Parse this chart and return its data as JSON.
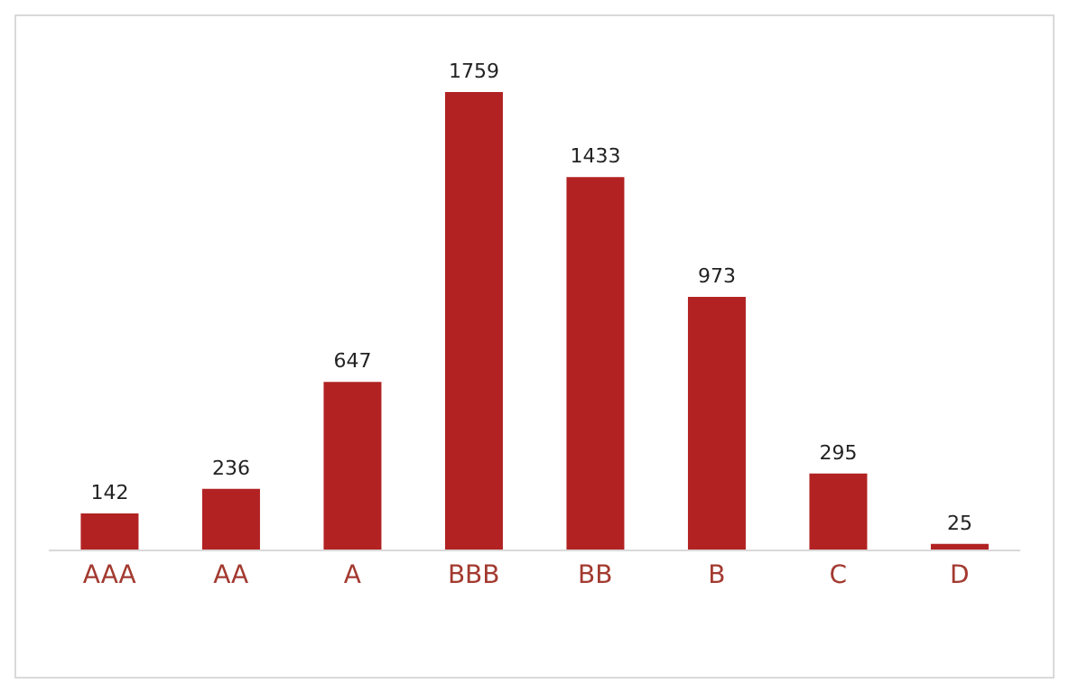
{
  "chart_data": {
    "type": "bar",
    "categories": [
      "AAA",
      "AA",
      "A",
      "BBB",
      "BB",
      "B",
      "C",
      "D"
    ],
    "values": [
      142,
      236,
      647,
      1759,
      1433,
      973,
      295,
      25
    ],
    "color": "#b22222",
    "data_labels": true
  }
}
